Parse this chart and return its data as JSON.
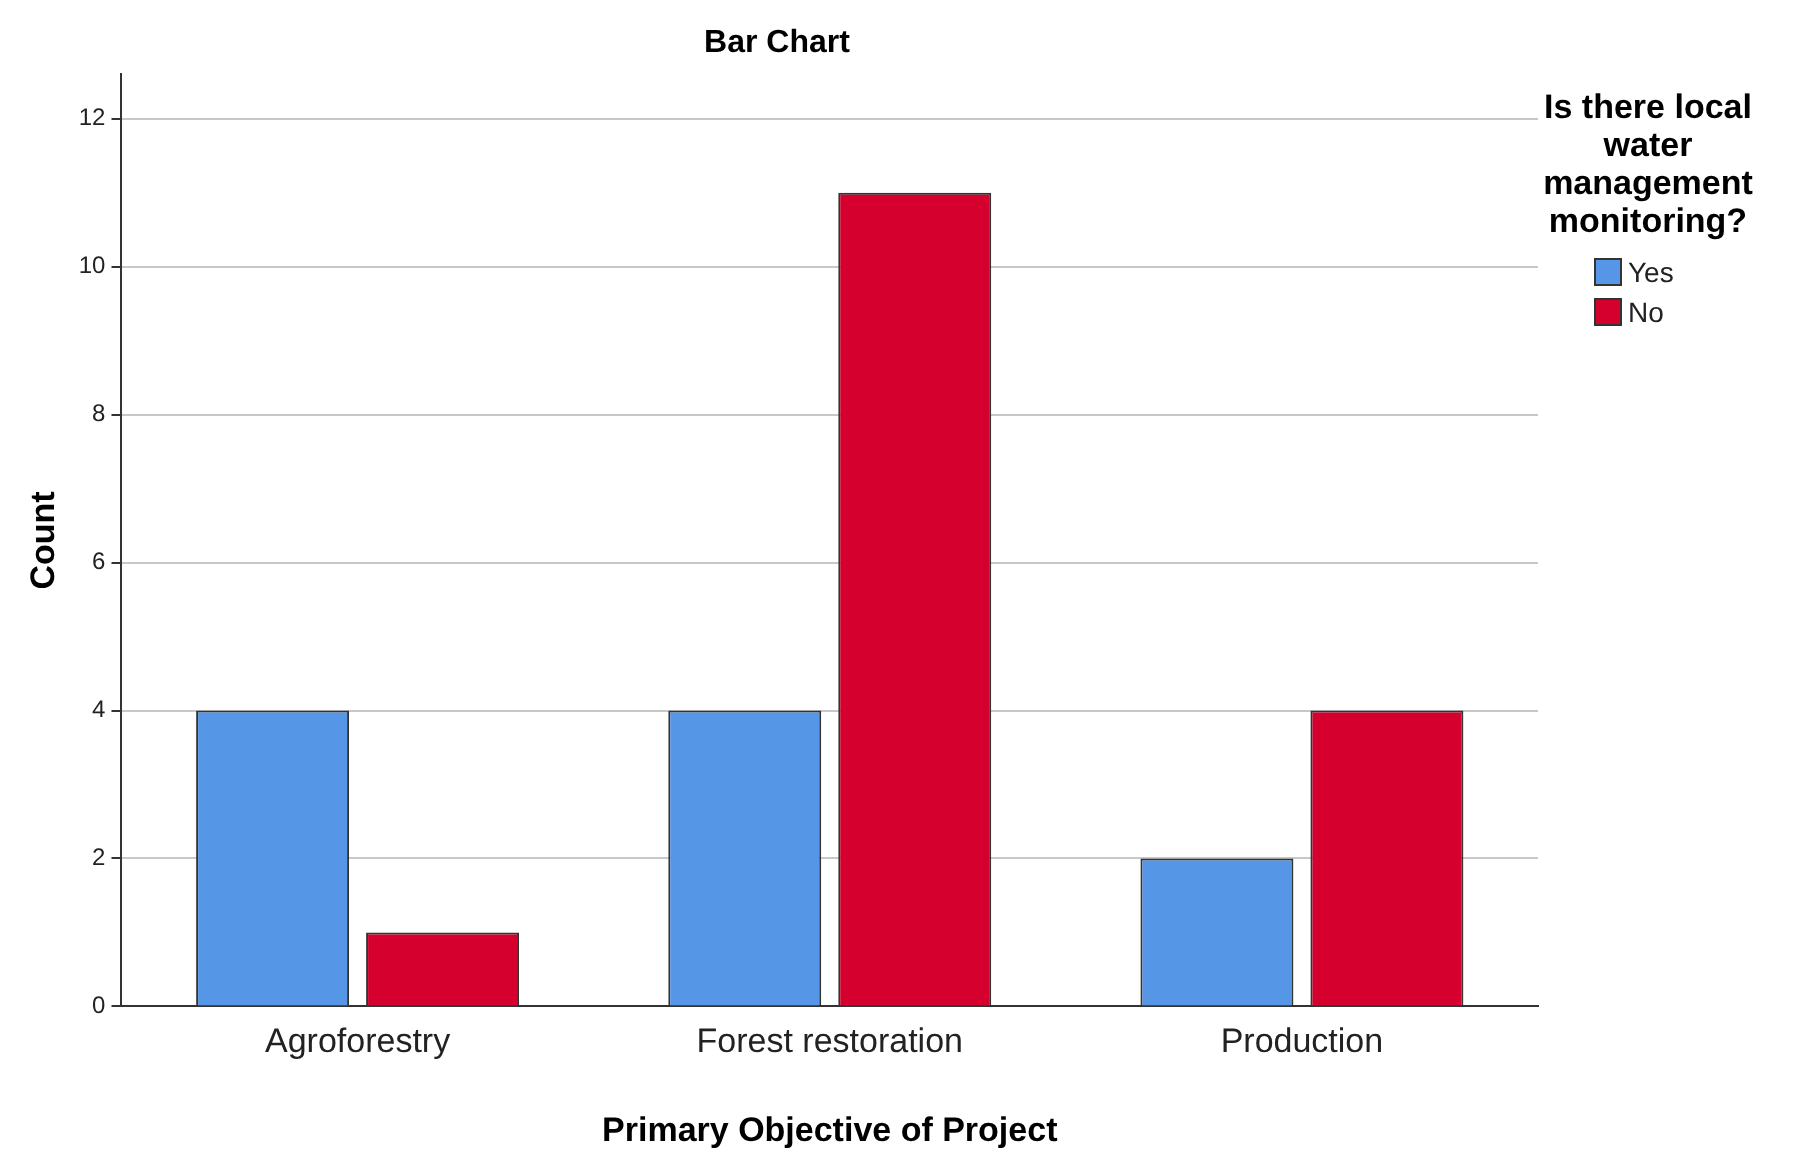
{
  "chart_data": {
    "type": "bar",
    "title": "Bar Chart",
    "xlabel": "Primary Objective of Project",
    "ylabel": "Count",
    "legend_title": "Is there local water management monitoring?",
    "categories": [
      "Agroforestry",
      "Forest restoration",
      "Production"
    ],
    "series": [
      {
        "name": "Yes",
        "color": "#5596e6",
        "values": [
          4,
          4,
          2
        ]
      },
      {
        "name": "No",
        "color": "#d6002e",
        "values": [
          1,
          11,
          4
        ]
      }
    ],
    "ylim": [
      0,
      12.6
    ],
    "yticks": [
      0,
      2,
      4,
      6,
      8,
      10,
      12
    ],
    "grid": "y",
    "legend": "top right"
  }
}
